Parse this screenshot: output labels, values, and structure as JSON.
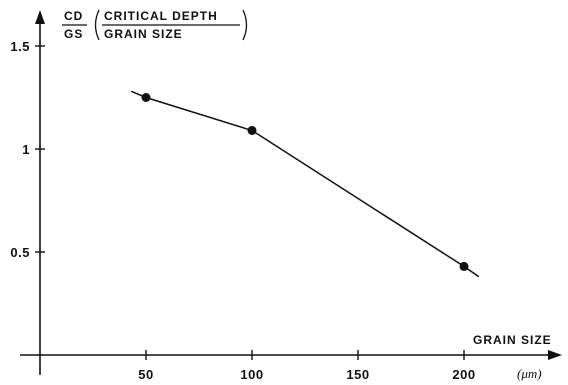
{
  "chart_data": {
    "type": "line",
    "ylabel": {
      "abbr_num": "CD",
      "abbr_den": "GS",
      "full_num": "CRITICAL DEPTH",
      "full_den": "GRAIN SIZE"
    },
    "xlabel": "GRAIN SIZE",
    "xunit": "(μm)",
    "xlim": [
      0,
      225
    ],
    "ylim": [
      0,
      1.7
    ],
    "xticks": [
      50,
      100,
      150,
      200
    ],
    "xtick_labels": [
      "50",
      "100",
      "150",
      "200"
    ],
    "yticks": [
      0.5,
      1,
      1.5
    ],
    "ytick_labels": [
      "0.5",
      "1",
      "1.5"
    ],
    "grid": false,
    "series": [
      {
        "x": [
          50,
          100,
          200
        ],
        "y": [
          1.25,
          1.09,
          0.43
        ]
      }
    ],
    "line_extension": {
      "start": [
        43,
        1.28
      ],
      "end": [
        207,
        0.38
      ]
    }
  }
}
